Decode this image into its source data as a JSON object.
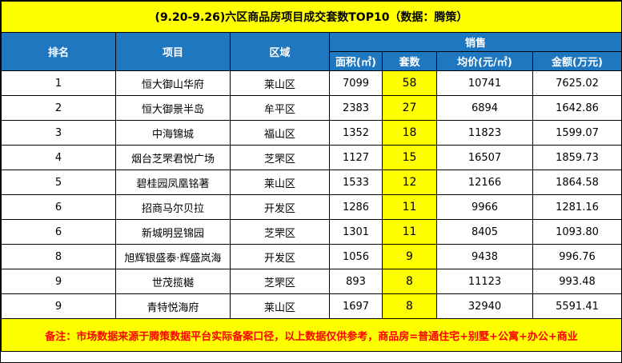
{
  "title": "(9.20-9.26)六区商品房项目成交套数TOP10（数据：腾策）",
  "headers": {
    "rank": "排名",
    "project": "项目",
    "district": "区域",
    "sales": "销售",
    "area": "面积(㎡)",
    "units": "套数",
    "avg_price": "均价(元/㎡)",
    "amount": "金额(万元)"
  },
  "rows": [
    {
      "rank": "1",
      "project": "恒大御山华府",
      "district": "莱山区",
      "area": "7099",
      "units": "58",
      "avg_price": "10741",
      "amount": "7625.02"
    },
    {
      "rank": "2",
      "project": "恒大御景半岛",
      "district": "牟平区",
      "area": "2383",
      "units": "27",
      "avg_price": "6894",
      "amount": "1642.86"
    },
    {
      "rank": "3",
      "project": "中海锦城",
      "district": "福山区",
      "area": "1352",
      "units": "18",
      "avg_price": "11823",
      "amount": "1599.07"
    },
    {
      "rank": "4",
      "project": "烟台芝罘君悦广场",
      "district": "芝罘区",
      "area": "1127",
      "units": "15",
      "avg_price": "16507",
      "amount": "1859.73"
    },
    {
      "rank": "5",
      "project": "碧桂园凤凰铭著",
      "district": "莱山区",
      "area": "1533",
      "units": "12",
      "avg_price": "12166",
      "amount": "1864.58"
    },
    {
      "rank": "6",
      "project": "招商马尔贝拉",
      "district": "开发区",
      "area": "1286",
      "units": "11",
      "avg_price": "9966",
      "amount": "1281.16"
    },
    {
      "rank": "6",
      "project": "新城明昱锦园",
      "district": "芝罘区",
      "area": "1301",
      "units": "11",
      "avg_price": "8405",
      "amount": "1093.80"
    },
    {
      "rank": "8",
      "project": "旭辉银盛泰·辉盛岚海",
      "district": "开发区",
      "area": "1056",
      "units": "9",
      "avg_price": "9438",
      "amount": "996.76"
    },
    {
      "rank": "9",
      "project": "世茂揽樾",
      "district": "芝罘区",
      "area": "893",
      "units": "8",
      "avg_price": "11123",
      "amount": "993.48"
    },
    {
      "rank": "9",
      "project": "青特悦海府",
      "district": "莱山区",
      "area": "1697",
      "units": "8",
      "avg_price": "32940",
      "amount": "5591.41"
    }
  ],
  "note": "备注：市场数据来源于腾策数据平台实际备案口径，以上数据仅供参考，商品房=普通住宅+别墅+公寓+办公+商业",
  "colors": {
    "title_bg": "#ffff00",
    "header_bg": "#1f77c0",
    "highlight": "#ffff00",
    "note_text": "#ff0000"
  }
}
